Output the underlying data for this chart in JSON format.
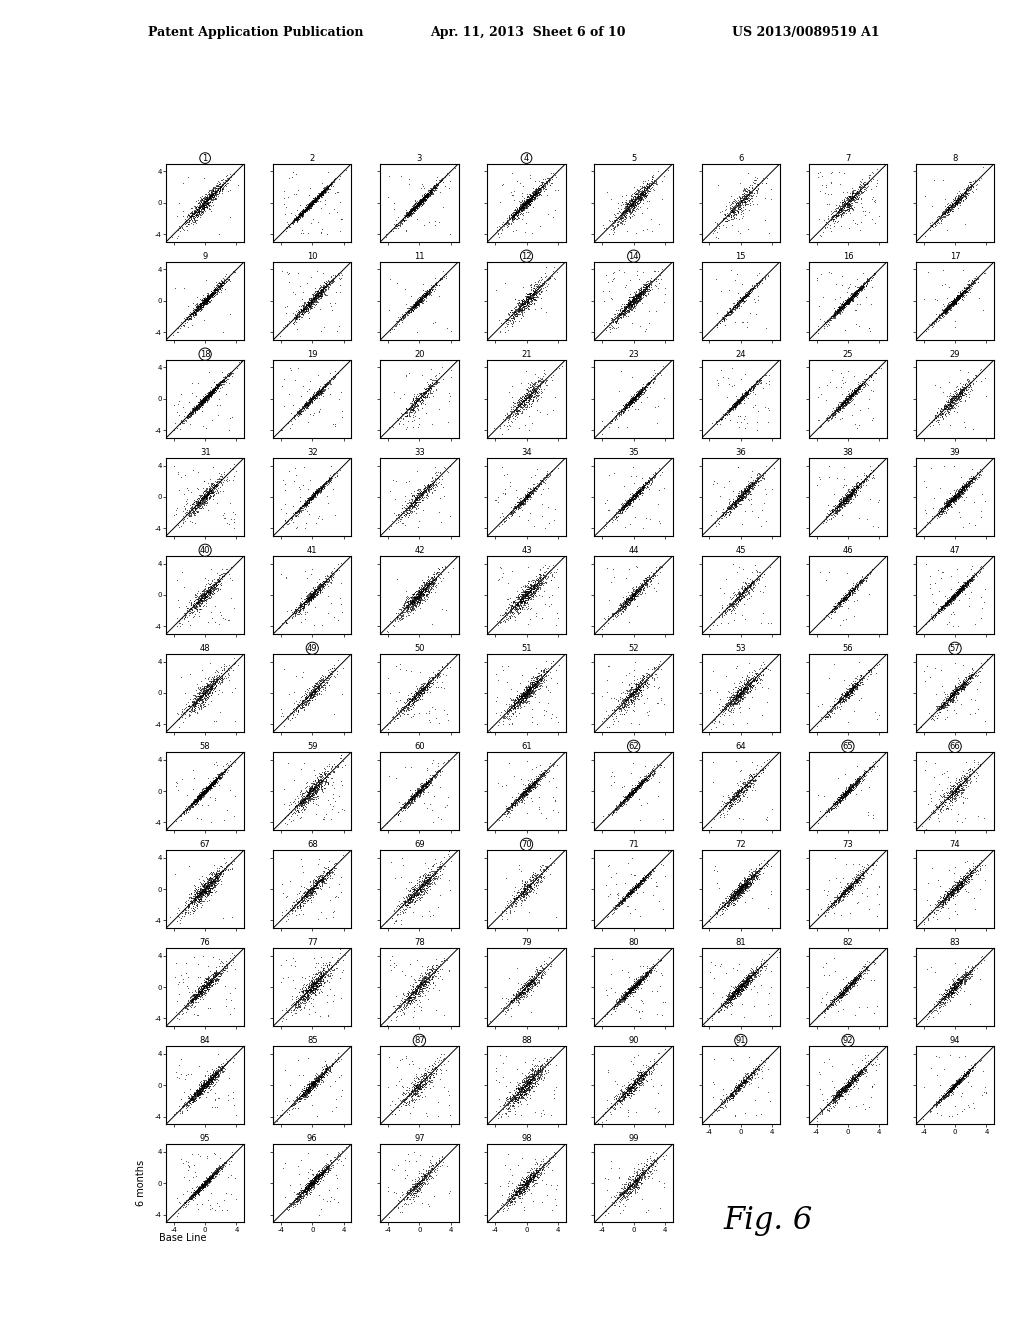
{
  "header_left": "Patent Application Publication",
  "header_center": "Apr. 11, 2013  Sheet 6 of 10",
  "header_right": "US 2013/0089519 A1",
  "fig_label": "Fig. 6",
  "ylabel": "6 months",
  "xlabel": "Base Line",
  "panel_labels": [
    [
      1,
      2,
      3,
      4,
      5,
      6,
      7,
      8
    ],
    [
      9,
      10,
      11,
      12,
      14,
      15,
      16,
      17
    ],
    [
      18,
      19,
      20,
      21,
      23,
      24,
      25,
      29
    ],
    [
      31,
      32,
      33,
      34,
      35,
      36,
      38,
      39
    ],
    [
      40,
      41,
      42,
      43,
      44,
      45,
      46,
      47
    ],
    [
      48,
      49,
      50,
      51,
      52,
      53,
      56,
      57
    ],
    [
      58,
      59,
      60,
      61,
      62,
      64,
      65,
      66
    ],
    [
      67,
      68,
      69,
      70,
      71,
      72,
      73,
      74
    ],
    [
      76,
      77,
      78,
      79,
      80,
      81,
      82,
      83
    ],
    [
      84,
      85,
      87,
      88,
      90,
      91,
      92,
      94
    ],
    [
      95,
      96,
      97,
      98,
      99,
      -1,
      -1,
      -1
    ]
  ],
  "circled_labels": [
    1,
    4,
    12,
    14,
    18,
    40,
    49,
    57,
    62,
    65,
    66,
    70,
    87,
    91,
    92
  ],
  "n_rows": 11,
  "n_cols": 8,
  "header_fontsize": 9,
  "label_fontsize": 6,
  "tick_fontsize": 5,
  "fig_label_fontsize": 22
}
